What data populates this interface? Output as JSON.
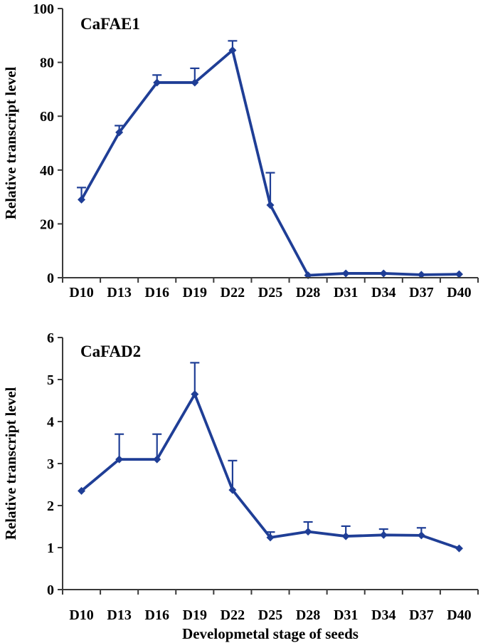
{
  "figure": {
    "background": "#ffffff"
  },
  "colors": {
    "series": "#1f3e96",
    "axis": "#3a3a3a",
    "text": "#000000"
  },
  "chart_data": [
    {
      "type": "line",
      "title": "CaFAE1",
      "ylabel": "Relative transcript level",
      "xlabel": "",
      "categories": [
        "D10",
        "D13",
        "D16",
        "D19",
        "D22",
        "D25",
        "D28",
        "D31",
        "D34",
        "D37",
        "D40"
      ],
      "values": [
        29,
        54,
        72.5,
        72.5,
        84.5,
        27,
        0.9,
        1.6,
        1.6,
        1.1,
        1.3
      ],
      "errors_up": [
        4.5,
        2.5,
        2.8,
        5.3,
        3.5,
        12,
        0,
        0,
        0,
        0,
        0
      ],
      "ylim": [
        0,
        100
      ],
      "yticks": [
        0,
        20,
        40,
        60,
        80,
        100
      ],
      "grid": false,
      "legend": "none",
      "marker": "diamond"
    },
    {
      "type": "line",
      "title": "CaFAD2",
      "ylabel": "Relative transcript level",
      "xlabel": "Developmetal stage of seeds",
      "categories": [
        "D10",
        "D13",
        "D16",
        "D19",
        "D22",
        "D25",
        "D28",
        "D31",
        "D34",
        "D37",
        "D40"
      ],
      "values": [
        2.35,
        3.1,
        3.1,
        4.65,
        2.37,
        1.24,
        1.38,
        1.27,
        1.3,
        1.29,
        0.98
      ],
      "errors_up": [
        0,
        0.6,
        0.6,
        0.75,
        0.7,
        0.13,
        0.23,
        0.24,
        0.14,
        0.18,
        0
      ],
      "ylim": [
        0,
        6
      ],
      "yticks": [
        0,
        1,
        2,
        3,
        4,
        5,
        6
      ],
      "grid": false,
      "legend": "none",
      "marker": "diamond"
    }
  ]
}
